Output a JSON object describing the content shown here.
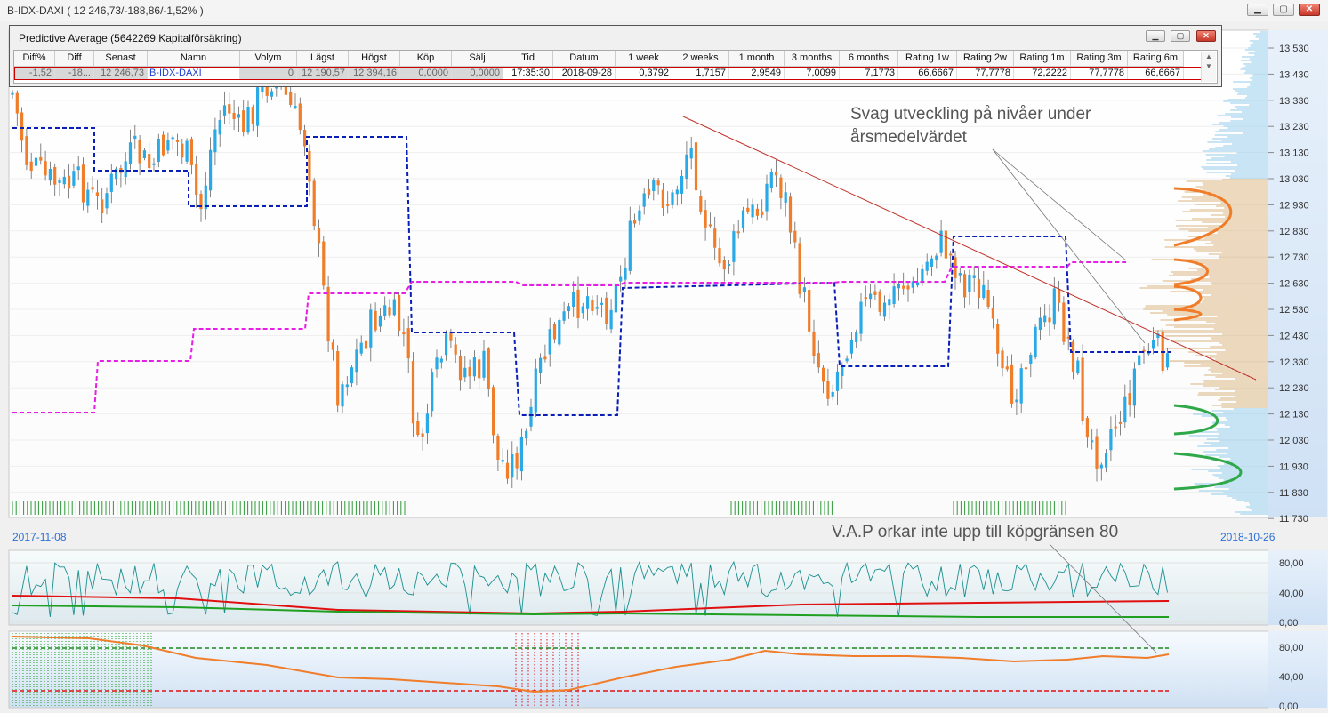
{
  "window": {
    "title": "B-IDX-DAXI ( 12 246,73/-188,86/-1,52% )",
    "minimize": "▁",
    "maximize": "▢",
    "close": "✕"
  },
  "panel": {
    "title": "Predictive Average (5642269  Kapitalförsäkring)",
    "columns": [
      "Diff%",
      "Diff",
      "Senast",
      "Namn",
      "Volym",
      "Lägst",
      "Högst",
      "Köp",
      "Sälj",
      "Tid",
      "Datum",
      "1 week",
      "2 weeks",
      "1 month",
      "3 months",
      "6 months",
      "Rating 1w",
      "Rating 2w",
      "Rating 1m",
      "Rating 3m",
      "Rating 6m"
    ],
    "row": [
      "-1,52",
      "-18...",
      "12 246,73",
      "B-IDX-DAXI",
      "0",
      "12 190,57",
      "12 394,16",
      "0,0000",
      "0,0000",
      "17:35:30",
      "2018-09-28",
      "0,3792",
      "1,7157",
      "2,9549",
      "7,0099",
      "7,1773",
      "66,6667",
      "77,7778",
      "72,2222",
      "77,7778",
      "66,6667"
    ]
  },
  "axis": {
    "price_labels": [
      "13 530",
      "13 430",
      "13 330",
      "13 230",
      "13 130",
      "13 030",
      "12 930",
      "12 830",
      "12 730",
      "12 630",
      "12 530",
      "12 430",
      "12 330",
      "12 230",
      "12 130",
      "12 030",
      "11 930",
      "11 830",
      "11 730"
    ],
    "osc1_labels": [
      "80,00",
      "40,00",
      "0,00"
    ],
    "osc2_labels": [
      "80,00",
      "40,00",
      "0,00"
    ],
    "date_start": "2017-11-08",
    "date_end": "2018-10-26"
  },
  "annotations": {
    "line1": "Svag utveckling på nivåer under",
    "line2": "årsmedelvärdet",
    "vap": "V.A.P orkar inte upp till köpgränsen 80"
  },
  "colors": {
    "up": "#29a9e6",
    "down": "#f07d2a",
    "blue_avg": "#0a1fb8",
    "magenta_avg": "#e61ee6",
    "trend": "#c0322a"
  }
}
